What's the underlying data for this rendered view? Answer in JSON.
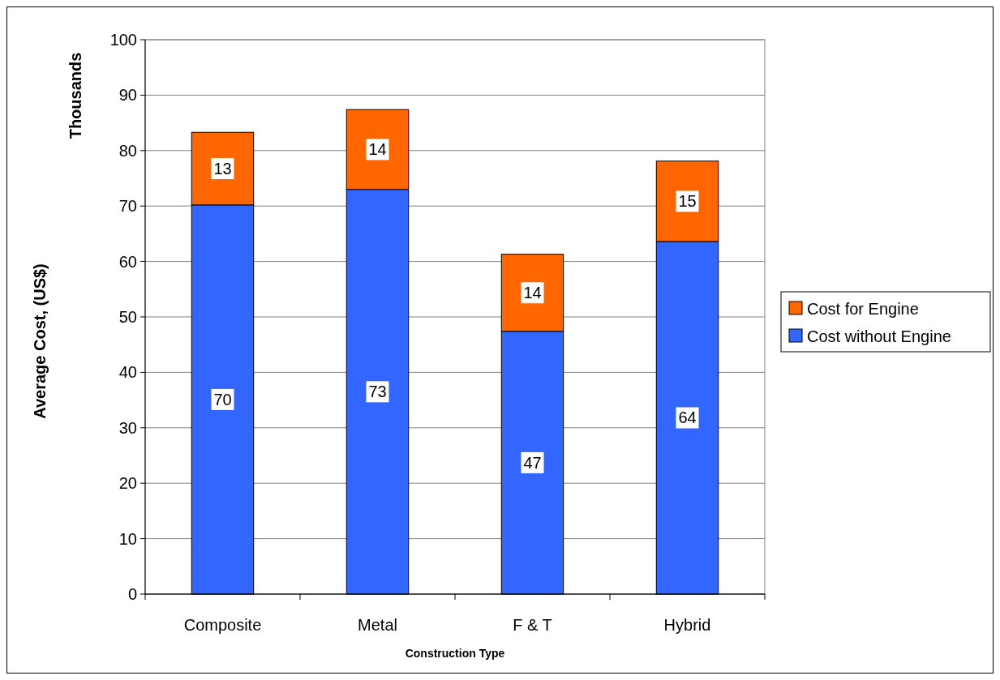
{
  "chart_data": {
    "type": "bar",
    "stacked": true,
    "xlabel": "Construction Type",
    "ylabel": "Average Cost, (US$)",
    "annotations": [
      "Thousands"
    ],
    "categories": [
      "Composite",
      "Metal",
      "F & T",
      "Hybrid"
    ],
    "series": [
      {
        "name": "Cost without Engine",
        "color": "#3366ff",
        "values": [
          70.2,
          73,
          47.4,
          63.6
        ],
        "value_labels": [
          "70",
          "73",
          "47",
          "64"
        ]
      },
      {
        "name": "Cost for Engine",
        "color": "#ff6600",
        "values": [
          13.1,
          14.4,
          13.9,
          14.5
        ],
        "value_labels": [
          "13",
          "14",
          "14",
          "15"
        ]
      }
    ],
    "ylim": [
      0,
      100
    ],
    "yticks": [
      0,
      10,
      20,
      30,
      40,
      50,
      60,
      70,
      80,
      90,
      100
    ],
    "grid": "y",
    "legend": "right"
  }
}
